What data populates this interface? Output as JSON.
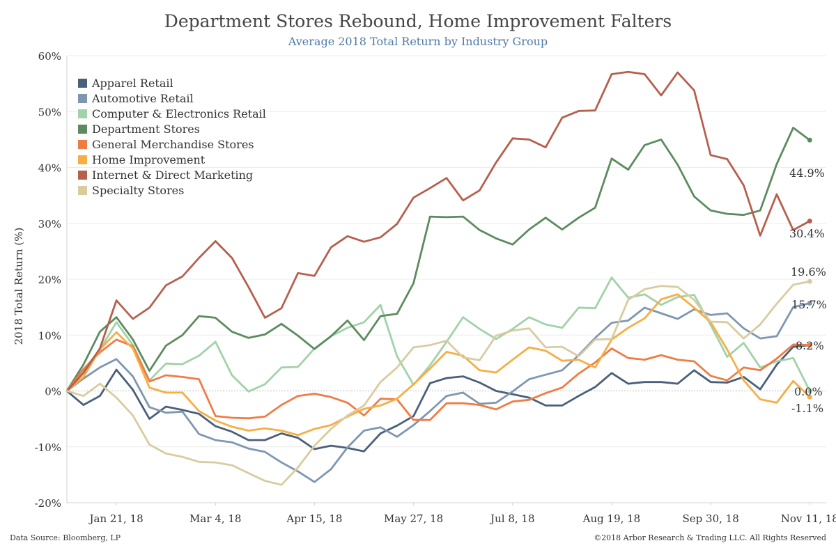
{
  "header": {
    "title": "Department Stores Rebound, Home Improvement Falters",
    "subtitle": "Average 2018 Total Return by Industry Group"
  },
  "footer": {
    "source": "Data Source: Bloomberg, LP",
    "copyright": "©2018 Arbor Research & Trading LLC. All Rights Reserved"
  },
  "chart_data": {
    "type": "line",
    "title": "Department Stores Rebound, Home Improvement Falters",
    "subtitle": "Average 2018 Total Return by Industry Group",
    "xlabel": "",
    "ylabel": "2018 Total Return (%)",
    "ylim": [
      -20,
      60
    ],
    "yticks": [
      -20,
      -10,
      0,
      10,
      20,
      30,
      40,
      50,
      60
    ],
    "ytick_labels": [
      "-20%",
      "-10%",
      "0%",
      "10%",
      "20%",
      "30%",
      "40%",
      "50%",
      "60%"
    ],
    "xlim": [
      "2017-12-31",
      "2018-11-18"
    ],
    "xticks": [
      "2018-01-21",
      "2018-03-04",
      "2018-04-15",
      "2018-05-27",
      "2018-07-08",
      "2018-08-19",
      "2018-09-30",
      "2018-11-11"
    ],
    "xtick_labels": [
      "Jan 21, 18",
      "Mar 4, 18",
      "Apr 15, 18",
      "May 27, 18",
      "Jul 8, 18",
      "Aug 19, 18",
      "Sep 30, 18",
      "Nov 11, 18"
    ],
    "grid": "horizontal",
    "legend_position": "top-left",
    "x": [
      "2017-12-31",
      "2018-01-07",
      "2018-01-14",
      "2018-01-21",
      "2018-01-28",
      "2018-02-04",
      "2018-02-11",
      "2018-02-18",
      "2018-02-25",
      "2018-03-04",
      "2018-03-11",
      "2018-03-18",
      "2018-03-25",
      "2018-04-01",
      "2018-04-08",
      "2018-04-15",
      "2018-04-22",
      "2018-04-29",
      "2018-05-06",
      "2018-05-13",
      "2018-05-20",
      "2018-05-27",
      "2018-06-03",
      "2018-06-10",
      "2018-06-17",
      "2018-06-24",
      "2018-07-01",
      "2018-07-08",
      "2018-07-15",
      "2018-07-22",
      "2018-07-29",
      "2018-08-05",
      "2018-08-12",
      "2018-08-19",
      "2018-08-26",
      "2018-09-02",
      "2018-09-09",
      "2018-09-16",
      "2018-09-23",
      "2018-09-30",
      "2018-10-07",
      "2018-10-14",
      "2018-10-21",
      "2018-10-28",
      "2018-11-04",
      "2018-11-11"
    ],
    "series": [
      {
        "name": "Apparel Retail",
        "color": "#4a5f7a",
        "values": [
          0,
          -2.5,
          -0.9,
          3.8,
          0.2,
          -5,
          -2.8,
          -3.4,
          -4.1,
          -6.3,
          -7.3,
          -8.8,
          -8.8,
          -7.6,
          -8.4,
          -10.4,
          -9.8,
          -10.2,
          -10.8,
          -7.6,
          -6.2,
          -4.5,
          1.4,
          2.3,
          2.6,
          1.5,
          0,
          -0.6,
          -1.2,
          -2.6,
          -2.6,
          -0.9,
          0.7,
          3.2,
          1.3,
          1.6,
          1.6,
          1.3,
          3.7,
          1.6,
          1.5,
          2.5,
          0.3,
          4.7,
          7.9,
          8.2
        ]
      },
      {
        "name": "Automotive Retail",
        "color": "#7f96b1",
        "values": [
          0,
          2.2,
          4.2,
          5.7,
          2.6,
          -2.9,
          -3.9,
          -3.7,
          -7.7,
          -8.8,
          -9.2,
          -10.3,
          -10.9,
          -12.8,
          -14.4,
          -16.3,
          -14,
          -10.1,
          -7.1,
          -6.5,
          -8.2,
          -6.1,
          -3.6,
          -0.9,
          -0.3,
          -2.3,
          -2.1,
          -0.1,
          2.1,
          2.9,
          3.7,
          6.4,
          9.5,
          12.2,
          12.6,
          14.9,
          13.9,
          12.9,
          14.6,
          13.6,
          13.9,
          11.2,
          9.4,
          9.8,
          15,
          15.7
        ]
      },
      {
        "name": "Computer & Electronics Retail",
        "color": "#a1d2a9",
        "values": [
          0,
          3.7,
          7.4,
          12.3,
          8.2,
          1.9,
          4.9,
          4.8,
          6.3,
          8.8,
          2.8,
          -0.1,
          1.2,
          4.2,
          4.3,
          7.6,
          9.8,
          11.3,
          12.3,
          15.4,
          6.2,
          1.1,
          4.6,
          8.8,
          13.2,
          11.1,
          9.3,
          11.1,
          13.2,
          11.9,
          11.3,
          14.9,
          14.8,
          20.3,
          16.7,
          17.3,
          15.4,
          16.8,
          17.2,
          11.8,
          6.1,
          8.6,
          4.2,
          5.3,
          5.9,
          0
        ]
      },
      {
        "name": "Department Stores",
        "color": "#5c8b5f",
        "values": [
          0,
          4.7,
          10.6,
          13.2,
          9.2,
          3.6,
          8.1,
          10,
          13.4,
          13.1,
          10.6,
          9.5,
          10.1,
          12,
          9.9,
          7.5,
          9.8,
          12.6,
          9.1,
          13.4,
          13.8,
          19.3,
          31.2,
          31.1,
          31.2,
          28.8,
          27.3,
          26.2,
          28.9,
          31,
          28.9,
          31,
          32.8,
          41.6,
          39.6,
          44,
          45,
          40.5,
          34.8,
          32.3,
          31.7,
          31.5,
          32.3,
          40.6,
          47.1,
          44.9
        ]
      },
      {
        "name": "General Merchandise Stores",
        "color": "#ef7c45",
        "values": [
          0,
          3.9,
          6.9,
          9.2,
          8,
          1.7,
          2.8,
          2.5,
          2.1,
          -4.5,
          -4.8,
          -4.9,
          -4.6,
          -2.5,
          -0.9,
          -0.5,
          -1.1,
          -2.1,
          -4.4,
          -1.4,
          -1.5,
          -5.2,
          -5.2,
          -2.2,
          -2.2,
          -2.5,
          -3.3,
          -1.9,
          -1.6,
          -0.4,
          0.6,
          3.1,
          5.1,
          7.6,
          5.9,
          5.6,
          6.4,
          5.6,
          5.3,
          2.7,
          1.9,
          4.2,
          3.7,
          5.8,
          8.3,
          8.2
        ]
      },
      {
        "name": "Home Improvement",
        "color": "#f6ae45",
        "values": [
          0,
          2.5,
          7.4,
          10.5,
          7.6,
          0.6,
          -0.3,
          -0.3,
          -3.6,
          -5.3,
          -6.4,
          -7.1,
          -6.7,
          -7.1,
          -7.9,
          -6.8,
          -6.1,
          -4.6,
          -3.2,
          -2.6,
          -1.4,
          1.2,
          4,
          7,
          6.3,
          3.7,
          3.3,
          5.6,
          7.8,
          7.2,
          5.4,
          5.6,
          4.2,
          9.2,
          11.3,
          13,
          16.4,
          17.3,
          14.9,
          12.3,
          7.4,
          1.9,
          -1.5,
          -2.1,
          1.8,
          -1.1
        ]
      },
      {
        "name": "Internet & Direct Marketing",
        "color": "#b65f4d",
        "values": [
          0,
          3.2,
          7.6,
          16.2,
          12.9,
          14.9,
          18.9,
          20.5,
          23.8,
          26.8,
          23.8,
          18.6,
          13.1,
          14.8,
          21.1,
          20.6,
          25.7,
          27.7,
          26.7,
          27.5,
          29.9,
          34.6,
          36.3,
          38.1,
          34.1,
          35.9,
          40.9,
          45.2,
          45,
          43.6,
          48.9,
          50.1,
          50.2,
          56.7,
          57.1,
          56.7,
          52.9,
          57,
          53.8,
          42.2,
          41.5,
          36.8,
          27.8,
          35.2,
          28.8,
          30.4
        ]
      },
      {
        "name": "Specialty Stores",
        "color": "#d8cc9f",
        "values": [
          0,
          -0.9,
          1.3,
          -1.2,
          -4.4,
          -9.6,
          -11.2,
          -11.8,
          -12.7,
          -12.8,
          -13.3,
          -14.7,
          -16.1,
          -16.8,
          -13.7,
          -9.8,
          -6.8,
          -4.4,
          -2.6,
          1.6,
          4.2,
          7.8,
          8.2,
          9,
          6,
          5.5,
          9.9,
          10.8,
          11.2,
          7.8,
          7.9,
          6.2,
          9.2,
          9.3,
          16.3,
          18.2,
          18.8,
          18.6,
          16.3,
          12.4,
          12.3,
          9.4,
          11.9,
          15.6,
          19,
          19.6
        ]
      }
    ],
    "end_labels": [
      "44.9%",
      "30.4%",
      "19.6%",
      "15.7%",
      "8.2%",
      "0.0%",
      "-1.1%"
    ]
  }
}
